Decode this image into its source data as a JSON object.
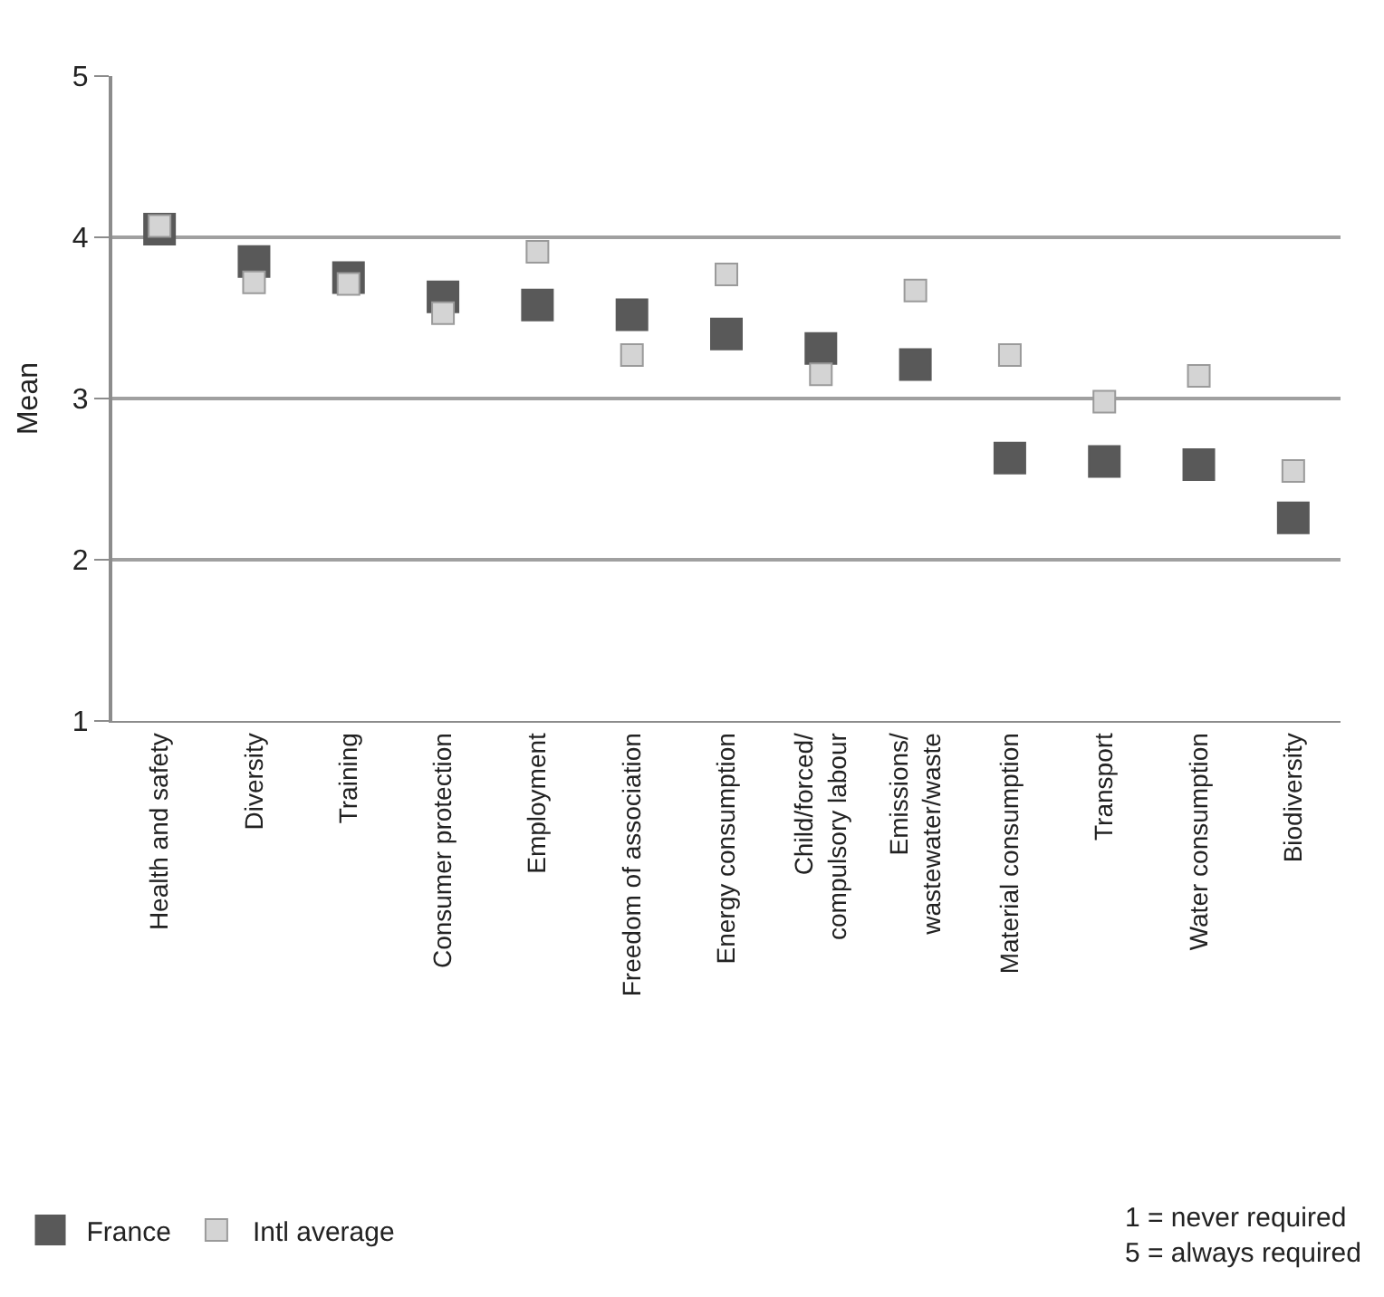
{
  "chart_data": {
    "type": "scatter",
    "ylabel": "Mean",
    "categories": [
      "Health and safety",
      "Diversity",
      "Training",
      "Consumer protection",
      "Employment",
      "Freedom of association",
      "Energy consumption",
      "Child/forced/\ncompulsory labour",
      "Emissions/\nwastewater/waste",
      "Material consumption",
      "Transport",
      "Water consumption",
      "Biodiversity"
    ],
    "series": [
      {
        "name": "France",
        "color": "#595959",
        "values": [
          4.05,
          3.85,
          3.75,
          3.63,
          3.58,
          3.52,
          3.4,
          3.31,
          3.21,
          2.63,
          2.61,
          2.59,
          2.26
        ]
      },
      {
        "name": "Intl average",
        "color": "#d4d4d4",
        "values": [
          4.07,
          3.72,
          3.71,
          3.53,
          3.91,
          3.27,
          3.77,
          3.15,
          3.67,
          3.27,
          2.98,
          3.14,
          2.55
        ]
      }
    ],
    "marker": "square",
    "ylim": [
      1,
      5
    ],
    "yticks": [
      1,
      2,
      3,
      4,
      5
    ],
    "grid": "y",
    "legend": "bottom left",
    "annotations": [
      "1 = never required\n5 = always required"
    ]
  }
}
